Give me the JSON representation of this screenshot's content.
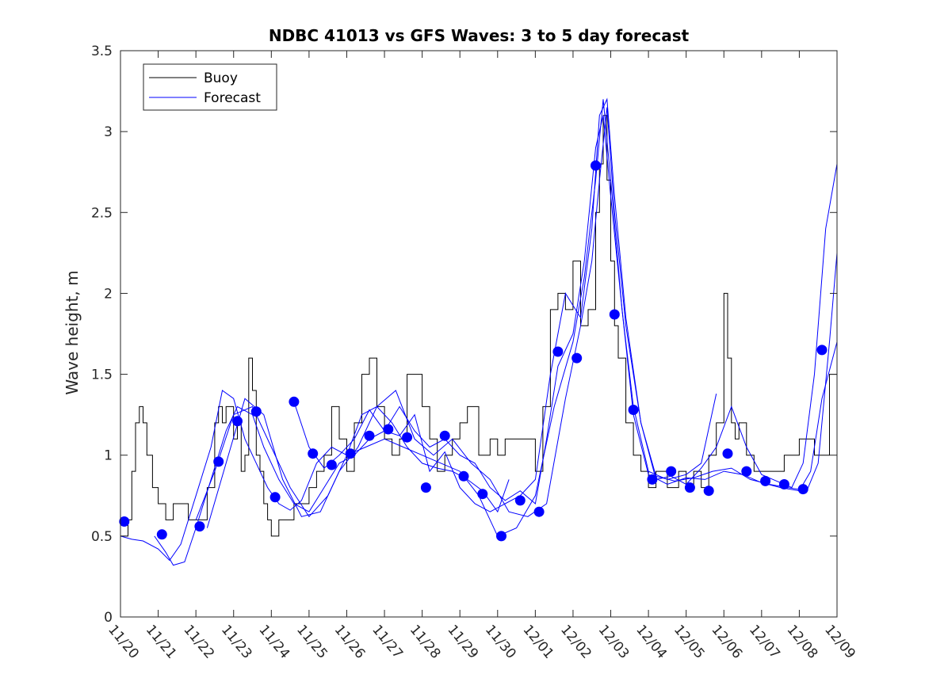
{
  "chart_data": {
    "type": "line",
    "title": "NDBC 41013 vs GFS Waves: 3 to 5 day forecast",
    "xlabel": "",
    "ylabel": "Wave height, m",
    "xlim": [
      0,
      19
    ],
    "ylim": [
      0,
      3.5
    ],
    "x_tick_labels": [
      "11/20",
      "11/21",
      "11/22",
      "11/23",
      "11/24",
      "11/25",
      "11/26",
      "11/27",
      "11/28",
      "11/29",
      "11/30",
      "12/01",
      "12/02",
      "12/03",
      "12/04",
      "12/05",
      "12/06",
      "12/07",
      "12/08",
      "12/09"
    ],
    "y_ticks": [
      0,
      0.5,
      1,
      1.5,
      2,
      2.5,
      3,
      3.5
    ],
    "y_tick_labels": [
      "0",
      "0.5",
      "1",
      "1.5",
      "2",
      "2.5",
      "3",
      "3.5"
    ],
    "legend": {
      "position": "top-left",
      "entries": [
        {
          "label": "Buoy",
          "color": "#000000"
        },
        {
          "label": "Forecast",
          "color": "#0000ff"
        }
      ]
    },
    "colors": {
      "buoy": "#000000",
      "forecast": "#0000ff",
      "marker": "#0000ff"
    },
    "series": [
      {
        "name": "Buoy",
        "x": [
          0.0,
          0.2,
          0.3,
          0.4,
          0.5,
          0.6,
          0.7,
          0.85,
          1.0,
          1.1,
          1.2,
          1.4,
          1.6,
          1.8,
          2.0,
          2.3,
          2.5,
          2.6,
          2.7,
          2.8,
          3.0,
          3.1,
          3.2,
          3.3,
          3.4,
          3.5,
          3.6,
          3.7,
          3.8,
          3.9,
          4.0,
          4.1,
          4.2,
          4.4,
          4.6,
          4.8,
          5.0,
          5.2,
          5.4,
          5.6,
          5.8,
          6.0,
          6.2,
          6.4,
          6.6,
          6.8,
          7.0,
          7.2,
          7.4,
          7.6,
          7.8,
          8.0,
          8.2,
          8.4,
          8.6,
          8.8,
          9.0,
          9.2,
          9.5,
          9.8,
          10.0,
          10.2,
          10.4,
          10.6,
          10.8,
          11.0,
          11.2,
          11.4,
          11.6,
          11.8,
          12.0,
          12.2,
          12.4,
          12.6,
          12.7,
          12.8,
          12.9,
          13.0,
          13.1,
          13.2,
          13.4,
          13.6,
          13.8,
          14.0,
          14.2,
          14.5,
          14.8,
          15.0,
          15.2,
          15.4,
          15.6,
          15.8,
          16.0,
          16.1,
          16.2,
          16.3,
          16.4,
          16.6,
          16.8,
          17.0,
          17.3,
          17.6,
          17.8,
          18.0,
          18.2,
          18.4,
          18.6,
          18.8,
          19.0
        ],
        "y": [
          0.5,
          0.6,
          0.9,
          1.2,
          1.3,
          1.2,
          1.0,
          0.8,
          0.7,
          0.7,
          0.6,
          0.7,
          0.7,
          0.6,
          0.6,
          0.8,
          1.2,
          1.3,
          1.2,
          1.3,
          1.1,
          1.2,
          0.9,
          1.0,
          1.6,
          1.4,
          1.0,
          0.9,
          0.7,
          0.6,
          0.5,
          0.5,
          0.6,
          0.6,
          0.7,
          0.7,
          0.8,
          0.9,
          1.0,
          1.3,
          1.1,
          0.9,
          1.2,
          1.5,
          1.6,
          1.3,
          1.1,
          1.0,
          1.1,
          1.5,
          1.5,
          1.3,
          1.1,
          0.9,
          1.0,
          1.1,
          1.2,
          1.3,
          1.0,
          1.1,
          1.0,
          1.1,
          1.1,
          1.1,
          1.1,
          0.9,
          1.3,
          1.9,
          2.0,
          1.9,
          2.2,
          1.8,
          1.9,
          2.5,
          2.8,
          3.1,
          2.7,
          2.2,
          1.8,
          1.6,
          1.2,
          1.0,
          0.9,
          0.8,
          0.9,
          0.8,
          0.9,
          0.8,
          0.9,
          0.8,
          1.0,
          1.2,
          2.0,
          1.6,
          1.2,
          1.1,
          1.2,
          1.0,
          0.9,
          0.9,
          0.9,
          1.0,
          1.0,
          1.1,
          1.1,
          1.0,
          1.0,
          1.5,
          1.5
        ]
      },
      {
        "name": "Forecast",
        "runs": [
          {
            "x": [
              0.0,
              0.3,
              0.6,
              1.0,
              1.3,
              1.6,
              2.0,
              2.4,
              2.7,
              3.0,
              3.3,
              3.6,
              3.9,
              4.2,
              4.5,
              4.8,
              5.2,
              5.6,
              6.0,
              6.4,
              6.8,
              7.2,
              7.6,
              8.0,
              8.4,
              8.8,
              9.2,
              9.6,
              10.0,
              10.3
            ],
            "y": [
              0.5,
              0.48,
              0.47,
              0.42,
              0.35,
              0.45,
              0.75,
              1.05,
              1.4,
              1.35,
              1.1,
              0.95,
              0.8,
              0.7,
              0.66,
              0.72,
              0.95,
              1.05,
              1.0,
              1.25,
              1.3,
              1.2,
              1.05,
              0.95,
              0.92,
              0.9,
              0.85,
              0.78,
              0.65,
              0.85
            ]
          },
          {
            "x": [
              0.9,
              1.2,
              1.4,
              1.7,
              2.0,
              2.4,
              2.8,
              3.1,
              3.5,
              3.8,
              4.2,
              4.6,
              5.0,
              5.4,
              5.8,
              6.2,
              6.6,
              7.0,
              7.4,
              7.8,
              8.2,
              8.6,
              9.0,
              9.4,
              9.8,
              10.2,
              10.6,
              11.0,
              11.3,
              11.6,
              12.0,
              12.3,
              12.6,
              12.8,
              13.0,
              13.3,
              13.6,
              14.0,
              14.5,
              15.0,
              15.4,
              15.8
            ],
            "y": [
              0.5,
              0.4,
              0.32,
              0.34,
              0.55,
              0.85,
              1.15,
              1.3,
              1.25,
              1.05,
              0.85,
              0.7,
              0.65,
              0.8,
              0.95,
              1.0,
              1.1,
              1.15,
              1.3,
              1.15,
              1.05,
              1.1,
              1.0,
              0.95,
              0.8,
              0.72,
              0.78,
              0.7,
              1.1,
              1.55,
              1.75,
              2.2,
              2.9,
              3.1,
              2.6,
              1.9,
              1.3,
              0.9,
              0.85,
              0.88,
              0.95,
              1.38
            ]
          },
          {
            "x": [
              2.0,
              2.5,
              3.0,
              3.5,
              4.0,
              4.5,
              5.0,
              5.5,
              6.0,
              6.5,
              7.0,
              7.5,
              8.0,
              8.5,
              9.0,
              9.5,
              10.0,
              10.5,
              11.0,
              11.5,
              12.0,
              12.3,
              12.6,
              12.8,
              13.0,
              13.3,
              13.6,
              14.0,
              14.5,
              15.0,
              15.5,
              16.0,
              16.5,
              17.0,
              17.5,
              18.0,
              18.3,
              18.6,
              19.0
            ],
            "y": [
              0.6,
              0.9,
              1.25,
              1.3,
              1.05,
              0.8,
              0.62,
              0.75,
              1.0,
              1.05,
              1.1,
              1.05,
              1.0,
              0.95,
              0.9,
              0.75,
              0.5,
              0.55,
              0.75,
              1.3,
              1.7,
              2.1,
              2.7,
              3.2,
              2.7,
              1.9,
              1.25,
              0.88,
              0.82,
              0.86,
              0.85,
              0.9,
              0.88,
              0.83,
              0.8,
              0.78,
              0.9,
              1.35,
              1.7
            ]
          },
          {
            "x": [
              4.6,
              5.0,
              5.4,
              5.8,
              6.2,
              6.6,
              7.0,
              7.4,
              7.8,
              8.2,
              8.6,
              9.0,
              9.4,
              9.8,
              10.2,
              10.6,
              11.0,
              11.4,
              11.8,
              12.2,
              12.5,
              12.7,
              12.9,
              13.1,
              13.4,
              13.8,
              14.2,
              14.6,
              15.0,
              15.4,
              15.8,
              16.2,
              16.6,
              17.0,
              17.4,
              17.8,
              18.1,
              18.4,
              18.7,
              19.0
            ],
            "y": [
              1.33,
              1.05,
              0.92,
              1.0,
              1.1,
              1.28,
              1.15,
              1.12,
              1.25,
              0.9,
              1.02,
              0.8,
              0.7,
              0.65,
              0.7,
              0.75,
              0.85,
              1.5,
              2.0,
              1.85,
              2.4,
              3.1,
              3.2,
              2.6,
              1.85,
              1.2,
              0.85,
              0.87,
              0.82,
              0.92,
              1.05,
              1.3,
              1.05,
              0.88,
              0.84,
              0.8,
              0.95,
              1.5,
              2.4,
              2.8
            ]
          },
          {
            "x": [
              2.3,
              2.8,
              3.3,
              3.8,
              4.3,
              4.8,
              5.3,
              5.8,
              6.3,
              6.8,
              7.3,
              7.8,
              8.3,
              8.8,
              9.3,
              9.8,
              10.3,
              10.8,
              11.3,
              11.8,
              12.2,
              12.5,
              12.7,
              12.9,
              13.1,
              13.4,
              13.8,
              14.2,
              14.7,
              15.2,
              15.7,
              16.2,
              16.7,
              17.2,
              17.7,
              18.2,
              18.5,
              18.8,
              19.0
            ],
            "y": [
              0.55,
              0.95,
              1.35,
              1.25,
              0.85,
              0.62,
              0.65,
              0.9,
              1.05,
              1.3,
              1.4,
              1.1,
              1.0,
              1.1,
              0.95,
              0.85,
              0.65,
              0.62,
              0.7,
              1.35,
              1.8,
              2.2,
              2.7,
              3.15,
              2.5,
              1.8,
              1.2,
              0.87,
              0.84,
              0.86,
              0.9,
              0.92,
              0.85,
              0.82,
              0.8,
              0.78,
              0.95,
              1.7,
              2.25
            ]
          }
        ]
      }
    ],
    "markers": {
      "x": [
        0.1,
        1.1,
        2.1,
        2.6,
        3.1,
        3.6,
        4.1,
        4.6,
        5.1,
        5.6,
        6.1,
        6.6,
        7.1,
        7.6,
        8.1,
        8.6,
        9.1,
        9.6,
        10.1,
        10.6,
        11.1,
        11.6,
        12.1,
        12.6,
        13.1,
        13.6,
        14.1,
        14.6,
        15.1,
        15.6,
        16.1,
        16.6,
        17.1,
        17.6,
        18.1,
        18.6
      ],
      "y": [
        0.59,
        0.51,
        0.56,
        0.96,
        1.21,
        1.27,
        0.74,
        1.33,
        1.01,
        0.94,
        1.01,
        1.12,
        1.16,
        1.11,
        0.8,
        1.12,
        0.87,
        0.76,
        0.5,
        0.72,
        0.65,
        1.64,
        1.6,
        2.79,
        1.87,
        1.28,
        0.85,
        0.9,
        0.8,
        0.78,
        1.01,
        0.9,
        0.84,
        0.82,
        0.79,
        1.65
      ]
    }
  }
}
